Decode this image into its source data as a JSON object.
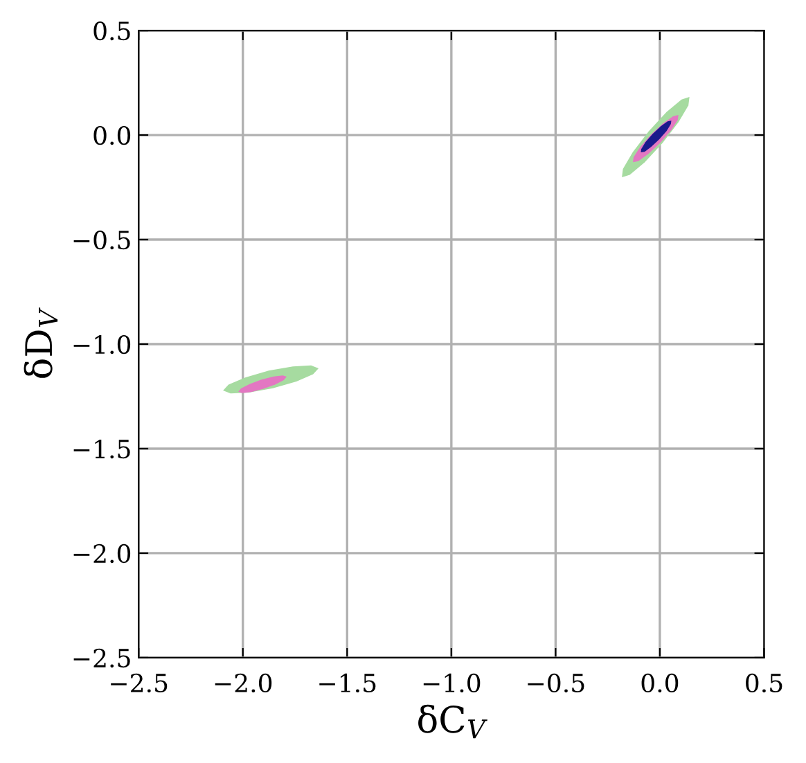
{
  "chart_data": {
    "type": "area",
    "xlabel": "δC$_{V}$",
    "ylabel": "δD$_{V}$",
    "xlim": [
      -2.5,
      0.5
    ],
    "ylim": [
      -2.5,
      0.5
    ],
    "xticks": [
      {
        "value": -2.5,
        "label": "−2.5"
      },
      {
        "value": -2.0,
        "label": "−2.0"
      },
      {
        "value": -1.5,
        "label": "−1.5"
      },
      {
        "value": -1.0,
        "label": "−1.0"
      },
      {
        "value": -0.5,
        "label": "−0.5"
      },
      {
        "value": 0.0,
        "label": "0.0"
      },
      {
        "value": 0.5,
        "label": "0.5"
      }
    ],
    "yticks": [
      {
        "value": -2.5,
        "label": "−2.5"
      },
      {
        "value": -2.0,
        "label": "−2.0"
      },
      {
        "value": -1.5,
        "label": "−1.5"
      },
      {
        "value": -1.0,
        "label": "−1.0"
      },
      {
        "value": -0.5,
        "label": "−0.5"
      },
      {
        "value": 0.0,
        "label": "0.0"
      },
      {
        "value": 0.5,
        "label": "0.5"
      }
    ],
    "grid": true,
    "series": [
      {
        "color": "#a6dba0",
        "x": [
          0.142,
          0.104,
          0.032,
          -0.053,
          -0.13,
          -0.177,
          -0.182,
          -0.144,
          -0.072,
          0.013,
          0.09,
          0.137
        ],
        "values": [
          0.182,
          0.17,
          0.11,
          0.018,
          -0.082,
          -0.162,
          -0.202,
          -0.19,
          -0.13,
          -0.038,
          0.062,
          0.142
        ]
      },
      {
        "color": "#e377c2",
        "x": [
          0.089,
          0.063,
          0.015,
          -0.043,
          -0.095,
          -0.126,
          -0.129,
          -0.103,
          -0.055,
          0.003,
          0.055,
          0.086
        ],
        "values": [
          0.096,
          0.09,
          0.056,
          0.002,
          -0.058,
          -0.106,
          -0.13,
          -0.125,
          -0.09,
          -0.036,
          0.024,
          0.072
        ]
      },
      {
        "color": "#1a1a8c",
        "x": [
          0.055,
          0.037,
          0.005,
          -0.034,
          -0.069,
          -0.089,
          -0.091,
          -0.073,
          -0.041,
          -0.002,
          0.033,
          0.053
        ],
        "values": [
          0.069,
          0.066,
          0.042,
          0.006,
          -0.034,
          -0.067,
          -0.083,
          -0.08,
          -0.056,
          -0.02,
          0.02,
          0.053
        ]
      },
      {
        "color": "#a6dba0",
        "x": [
          -1.637,
          -1.673,
          -1.76,
          -1.876,
          -1.989,
          -2.069,
          -2.095,
          -2.059,
          -1.972,
          -1.856,
          -1.743,
          -1.663
        ],
        "values": [
          -1.116,
          -1.102,
          -1.107,
          -1.127,
          -1.16,
          -1.194,
          -1.222,
          -1.236,
          -1.232,
          -1.211,
          -1.179,
          -1.144
        ]
      },
      {
        "color": "#e377c2",
        "x": [
          -1.79,
          -1.808,
          -1.852,
          -1.911,
          -1.968,
          -2.009,
          -2.022,
          -2.004,
          -1.96,
          -1.901,
          -1.844,
          -1.804
        ],
        "values": [
          -1.156,
          -1.15,
          -1.155,
          -1.17,
          -1.191,
          -1.212,
          -1.228,
          -1.234,
          -1.229,
          -1.214,
          -1.193,
          -1.172
        ]
      }
    ]
  }
}
